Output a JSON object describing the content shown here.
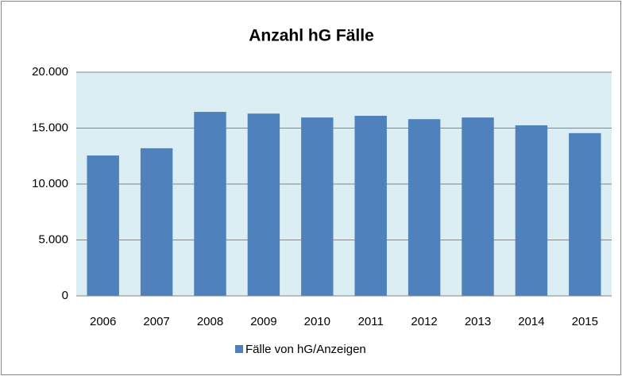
{
  "chart_data": {
    "type": "bar",
    "title": "Anzahl hG Fälle",
    "categories": [
      "2006",
      "2007",
      "2008",
      "2009",
      "2010",
      "2011",
      "2012",
      "2013",
      "2014",
      "2015"
    ],
    "series": [
      {
        "name": "Fälle von hG/Anzeigen",
        "color": "#4f81bd",
        "values": [
          12550,
          13200,
          16450,
          16300,
          15950,
          16100,
          15800,
          15950,
          15250,
          14550
        ]
      }
    ],
    "ylim": [
      0,
      20000
    ],
    "yticks": [
      0,
      {
        "value": 5000,
        "label": "5.000"
      },
      {
        "value": 10000,
        "label": "10.000"
      },
      {
        "value": 15000,
        "label": "15.000"
      },
      {
        "value": 20000,
        "label": "20.000"
      }
    ],
    "grid": true,
    "legend": "bottom"
  }
}
